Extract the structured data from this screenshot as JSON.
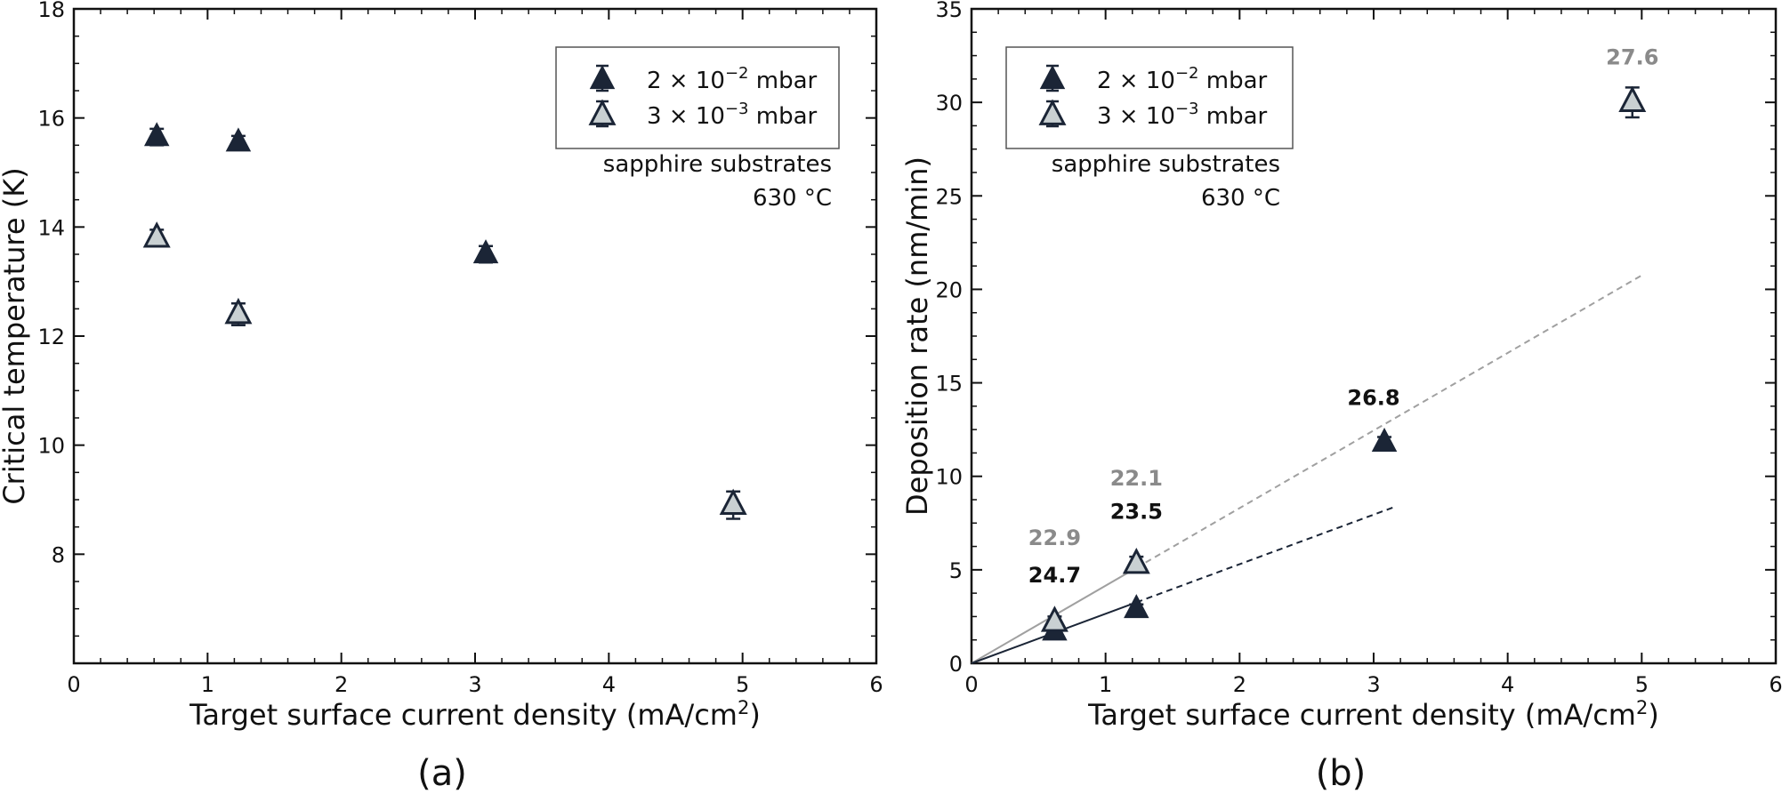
{
  "colors": {
    "dark_series": "#1b2536",
    "light_series_fill": "#c9d0d2",
    "light_series_edge": "#1b2536",
    "annotation_gray": "#8a8a8a",
    "annotation_black": "#111111",
    "fit_gray": "#a0a0a0"
  },
  "chart_data": [
    {
      "type": "scatter",
      "panel_label": "(a)",
      "xlabel": "Target surface current density (mA/cm²)",
      "xlabel_parts": {
        "text": "Target surface current density (mA/cm",
        "sup": "2",
        "close": ")"
      },
      "ylabel": "Critical temperature (K)",
      "xlim": [
        0,
        6
      ],
      "ylim": [
        6,
        18
      ],
      "xticks": [
        0,
        1,
        2,
        3,
        4,
        5,
        6
      ],
      "yticks": [
        8,
        10,
        12,
        14,
        16,
        18
      ],
      "grid": false,
      "legend_position": "top-right",
      "note_lines": [
        "sapphire substrates",
        "630 °C"
      ],
      "series": [
        {
          "name": "2 × 10⁻² mbar",
          "legend_parts": {
            "base": "2 × 10",
            "sup": "−2",
            "unit": " mbar"
          },
          "marker": "filled-triangle",
          "x": [
            0.62,
            1.23,
            3.08
          ],
          "y": [
            15.65,
            15.55,
            13.5
          ],
          "yerr": [
            0.15,
            0.12,
            0.15
          ]
        },
        {
          "name": "3 × 10⁻³ mbar",
          "legend_parts": {
            "base": "3 × 10",
            "sup": "−3",
            "unit": " mbar"
          },
          "marker": "open-triangle",
          "x": [
            0.62,
            1.23,
            4.93
          ],
          "y": [
            13.8,
            12.4,
            8.9
          ],
          "yerr": [
            0.15,
            0.2,
            0.25
          ]
        }
      ]
    },
    {
      "type": "scatter",
      "panel_label": "(b)",
      "xlabel": "Target surface current density (mA/cm²)",
      "xlabel_parts": {
        "text": "Target surface current density (mA/cm",
        "sup": "2",
        "close": ")"
      },
      "ylabel": "Deposition rate (nm/min)",
      "xlim": [
        0,
        6
      ],
      "ylim": [
        0,
        35
      ],
      "xticks": [
        0,
        1,
        2,
        3,
        4,
        5,
        6
      ],
      "yticks": [
        0,
        5,
        10,
        15,
        20,
        25,
        30,
        35
      ],
      "grid": false,
      "legend_position": "top-left",
      "note_lines": [
        "sapphire substrates",
        "630 °C"
      ],
      "series": [
        {
          "name": "2 × 10⁻² mbar",
          "legend_parts": {
            "base": "2 × 10",
            "sup": "−2",
            "unit": " mbar"
          },
          "marker": "filled-triangle",
          "x": [
            0.62,
            1.23,
            3.08
          ],
          "y": [
            1.7,
            2.9,
            11.8
          ],
          "yerr": [
            0.25,
            0.25,
            0.3
          ]
        },
        {
          "name": "3 × 10⁻³ mbar",
          "legend_parts": {
            "base": "3 × 10",
            "sup": "−3",
            "unit": " mbar"
          },
          "marker": "open-triangle",
          "x": [
            0.62,
            1.23,
            4.93
          ],
          "y": [
            2.2,
            5.3,
            30.0
          ],
          "yerr": [
            0.3,
            0.4,
            0.8
          ]
        }
      ],
      "fit_lines": [
        {
          "series": "3 × 10⁻³ mbar",
          "slope": 4.15,
          "solid_to": 1.23,
          "dashed_to": 5.02
        },
        {
          "series": "2 × 10⁻² mbar",
          "slope": 2.65,
          "solid_to": 1.23,
          "dashed_to": 3.17
        }
      ],
      "annotations": [
        {
          "text": "22.9",
          "x": 0.62,
          "y": 6.7,
          "color": "gray"
        },
        {
          "text": "24.7",
          "x": 0.62,
          "y": 4.7,
          "color": "black"
        },
        {
          "text": "22.1",
          "x": 1.23,
          "y": 9.9,
          "color": "gray"
        },
        {
          "text": "23.5",
          "x": 1.23,
          "y": 8.1,
          "color": "black"
        },
        {
          "text": "26.8",
          "x": 3.0,
          "y": 14.2,
          "color": "black"
        },
        {
          "text": "27.6",
          "x": 4.93,
          "y": 32.4,
          "color": "gray"
        }
      ]
    }
  ]
}
